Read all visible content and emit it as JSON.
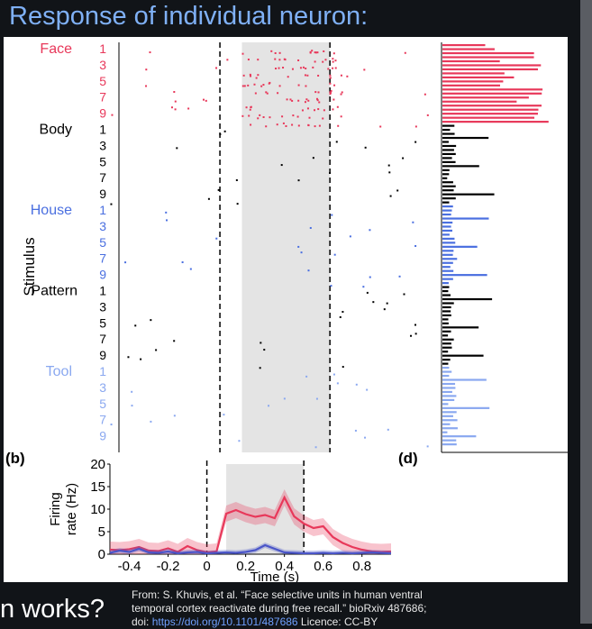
{
  "slide_title": "Response of individual neuron:",
  "overflow_heading": "n works?",
  "caption": {
    "line1": "From: S. Khuvis, et al. “Face selective units in human ventral",
    "line2": "temporal cortex reactivate during free recall.” bioRxiv 487686;",
    "line3_prefix": "doi: ",
    "line3_link": "https://doi.org/10.1101/487686",
    "line3_suffix": " Licence: CC-BY"
  },
  "colors": {
    "face": "#e8385a",
    "body": "#000000",
    "house": "#4a6fe0",
    "pattern": "#000000",
    "tool": "#8aa8f0",
    "shade": "#e4e4e4",
    "red_line": "#e8385a",
    "blue_line": "#4a55c8"
  },
  "raster": {
    "ylabel": "Stimulus",
    "categories": [
      {
        "name": "Face",
        "color_key": "face",
        "trials": [
          "1",
          "3",
          "5",
          "7",
          "9"
        ]
      },
      {
        "name": "Body",
        "color_key": "body",
        "trials": [
          "1",
          "3",
          "5",
          "7",
          "9"
        ]
      },
      {
        "name": "House",
        "color_key": "house",
        "trials": [
          "1",
          "3",
          "5",
          "7",
          "9"
        ]
      },
      {
        "name": "Pattern",
        "color_key": "pattern",
        "trials": [
          "1",
          "3",
          "5",
          "7",
          "9"
        ]
      },
      {
        "name": "Tool",
        "color_key": "tool",
        "trials": [
          "1",
          "3",
          "5",
          "7",
          "9"
        ]
      }
    ]
  },
  "panel_labels": {
    "b": "(b)",
    "d": "(d)"
  },
  "chart_data": {
    "type": "line",
    "xlabel": "Time (s)",
    "ylabel": "Firing rate (Hz)",
    "xlim": [
      -0.5,
      0.95
    ],
    "ylim": [
      0,
      20
    ],
    "xticks": [
      -0.4,
      -0.2,
      0,
      0.2,
      0.4,
      0.6,
      0.8
    ],
    "xtick_labels": [
      "-0.4",
      "-0.2",
      "0",
      "0.2",
      "0.4",
      "0.6",
      "0.8"
    ],
    "yticks": [
      0,
      5,
      10,
      15,
      20
    ],
    "ytick_labels": [
      "0",
      "5",
      "10",
      "15",
      "20"
    ],
    "shaded_window": [
      0.1,
      0.5
    ],
    "markers": [
      0,
      0.5
    ],
    "series": [
      {
        "color_key": "red_line",
        "x": [
          -0.5,
          -0.45,
          -0.4,
          -0.35,
          -0.3,
          -0.25,
          -0.2,
          -0.15,
          -0.1,
          -0.05,
          0,
          0.05,
          0.1,
          0.15,
          0.2,
          0.25,
          0.3,
          0.35,
          0.4,
          0.45,
          0.5,
          0.55,
          0.6,
          0.65,
          0.7,
          0.75,
          0.8,
          0.85,
          0.9,
          0.95
        ],
        "values": [
          1.0,
          0.9,
          1.1,
          1.6,
          0.8,
          0.7,
          1.3,
          0.5,
          1.8,
          0.9,
          0.4,
          0.6,
          9.0,
          9.8,
          8.9,
          8.3,
          8.7,
          8.0,
          12.6,
          8.4,
          6.8,
          5.8,
          6.2,
          3.8,
          2.5,
          1.6,
          1.0,
          0.6,
          0.5,
          0.6
        ]
      },
      {
        "color_key": "blue_line",
        "x": [
          -0.5,
          -0.45,
          -0.4,
          -0.35,
          -0.3,
          -0.25,
          -0.2,
          -0.15,
          -0.1,
          -0.05,
          0,
          0.05,
          0.1,
          0.15,
          0.2,
          0.25,
          0.3,
          0.35,
          0.4,
          0.45,
          0.5,
          0.55,
          0.6,
          0.65,
          0.7,
          0.75,
          0.8,
          0.85,
          0.9,
          0.95
        ],
        "values": [
          0.3,
          0.8,
          0.5,
          1.2,
          0.4,
          0.3,
          0.6,
          0.2,
          0.4,
          0.5,
          0.2,
          0.3,
          0.4,
          0.3,
          0.5,
          0.9,
          2.0,
          1.2,
          0.4,
          0.3,
          0.2,
          0.2,
          0.3,
          0.2,
          0.3,
          0.2,
          0.3,
          0.4,
          0.3,
          0.2
        ]
      }
    ]
  }
}
